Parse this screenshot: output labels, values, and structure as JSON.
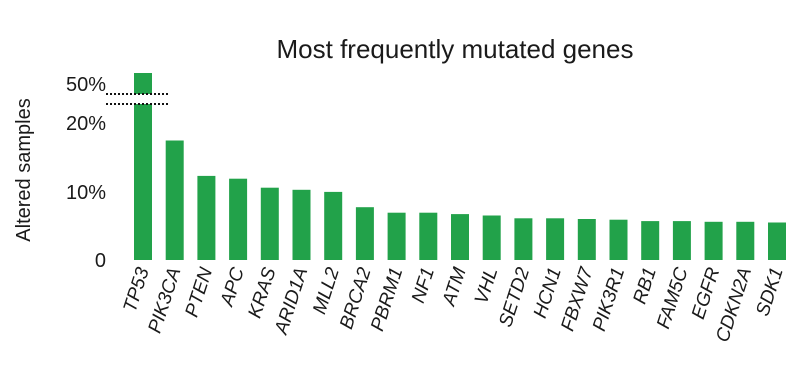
{
  "chart_data": {
    "type": "bar",
    "title": "Most frequently mutated genes",
    "ylabel": "Altered samples",
    "xlabel": "",
    "axis_break": true,
    "yticks": [
      {
        "value": 0,
        "label": "0"
      },
      {
        "value": 10,
        "label": "10%"
      },
      {
        "value": 20,
        "label": "20%"
      },
      {
        "value": 50,
        "label": "50%"
      }
    ],
    "categories": [
      "TP53",
      "PIK3CA",
      "PTEN",
      "APC",
      "KRAS",
      "ARID1A",
      "MLL2",
      "BRCA2",
      "PBRM1",
      "NF1",
      "ATM",
      "VHL",
      "SETD2",
      "HCN1",
      "FBXW7",
      "PIK3R1",
      "RB1",
      "FAM5C",
      "EGFR",
      "CDKN2A",
      "SDK1"
    ],
    "values": [
      52,
      17.2,
      12.1,
      11.7,
      10.4,
      10.1,
      9.8,
      7.6,
      6.8,
      6.8,
      6.6,
      6.4,
      6.0,
      6.0,
      5.9,
      5.8,
      5.6,
      5.6,
      5.5,
      5.5,
      5.4
    ],
    "bar_color": "#22a24a",
    "grid": false,
    "legend": "none"
  }
}
